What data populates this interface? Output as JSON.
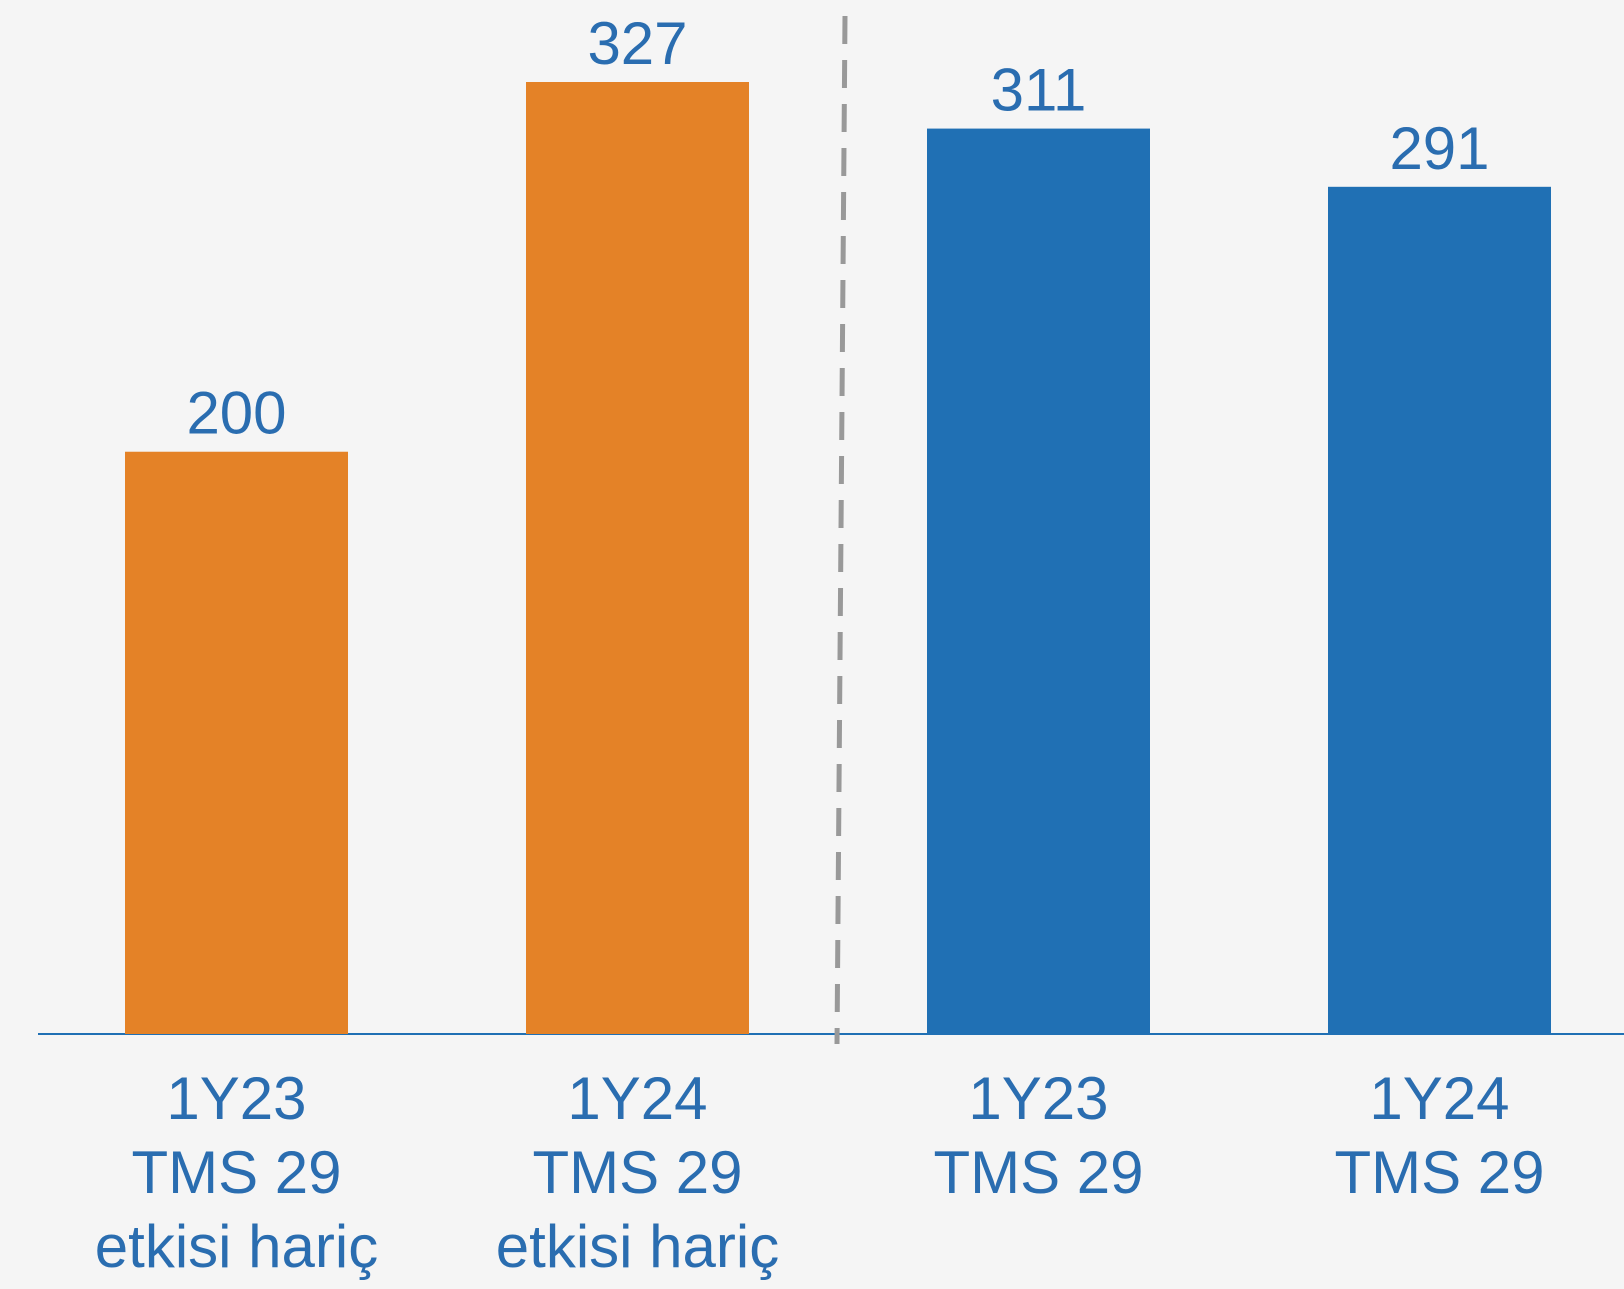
{
  "chart_data": {
    "type": "bar",
    "categories": [
      "1Y23\nTMS 29\netkisi hariç",
      "1Y24\nTMS 29\netkisi hariç",
      "1Y23\nTMS 29",
      "1Y24\nTMS 29"
    ],
    "values": [
      200,
      327,
      311,
      291
    ],
    "colors": [
      "#e48227",
      "#e48227",
      "#2070b4",
      "#2070b4"
    ]
  }
}
